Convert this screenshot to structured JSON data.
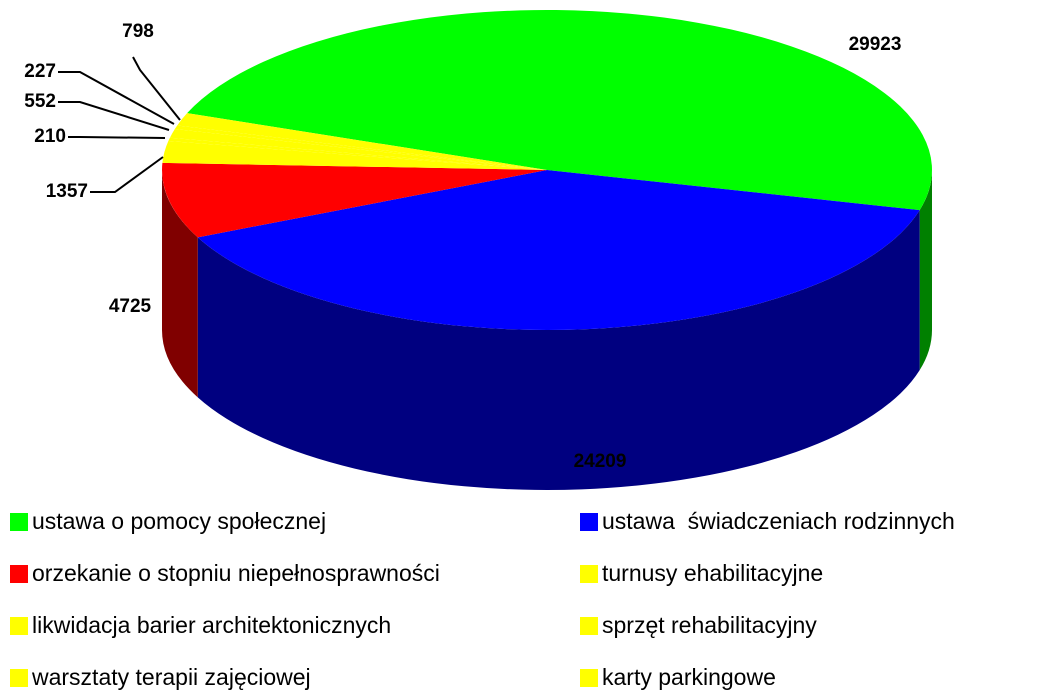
{
  "chart_data": {
    "type": "pie",
    "categories": [
      "ustawa o pomocy społecznej",
      "ustawa  świadczeniach rodzinnych",
      "orzekanie o stopniu niepełnosprawności",
      "turnusy ehabilitacyjne",
      "likwidacja barier architektonicznych",
      "sprzęt rehabilitacyjny",
      "warsztaty terapii zajęciowej",
      "karty parkingowe"
    ],
    "values": [
      29923,
      24209,
      4725,
      1357,
      210,
      552,
      227,
      798
    ],
    "colors": [
      "#00ff00",
      "#0000ff",
      "#ff0000",
      "#ffff00",
      "#ffff00",
      "#ffff00",
      "#ffff00",
      "#ffff00"
    ],
    "legend": "bottom"
  }
}
